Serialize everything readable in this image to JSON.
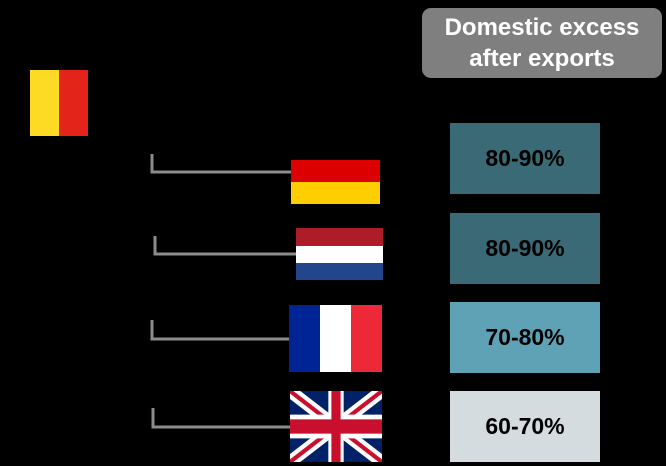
{
  "header": {
    "title": "Domestic excess after exports",
    "color": "#7f7f7f"
  },
  "rows": [
    {
      "label": "80-90%",
      "color": "#3b6a77"
    },
    {
      "label": "80-90%",
      "color": "#3b6a77"
    },
    {
      "label": "70-80%",
      "color": "#60a2b5"
    },
    {
      "label": "60-70%",
      "color": "#d5dcdf"
    }
  ]
}
